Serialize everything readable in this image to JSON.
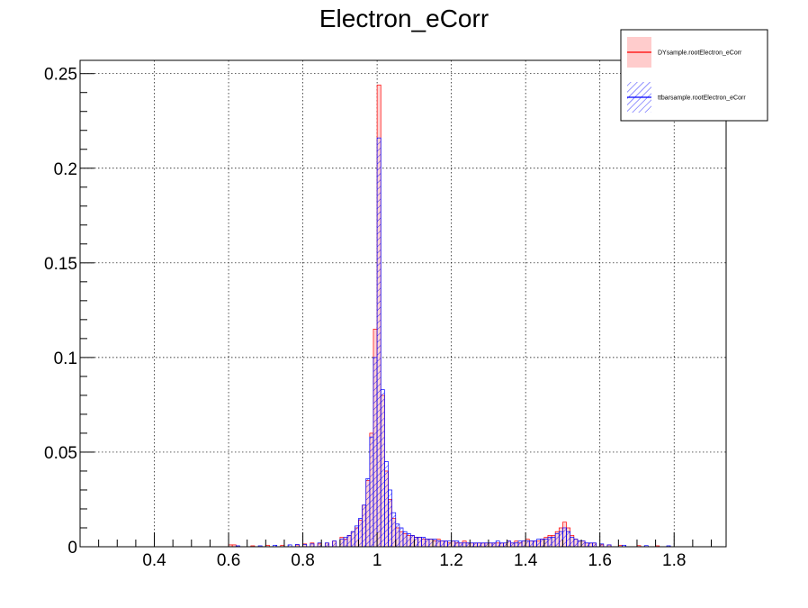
{
  "chart_data": {
    "type": "histogram",
    "title": "Electron_eCorr",
    "xlabel": "",
    "ylabel": "",
    "xlim": [
      0.2,
      1.94
    ],
    "ylim": [
      0,
      0.257
    ],
    "x_ticks": [
      0.4,
      0.6,
      0.8,
      1,
      1.2,
      1.4,
      1.6,
      1.8
    ],
    "x_tick_labels": [
      "0.4",
      "0.6",
      "0.8",
      "1",
      "1.2",
      "1.4",
      "1.6",
      "1.8"
    ],
    "y_ticks": [
      0,
      0.05,
      0.1,
      0.15,
      0.2,
      0.25
    ],
    "y_tick_labels": [
      "0",
      "0.05",
      "0.1",
      "0.15",
      "0.2",
      "0.25"
    ],
    "grid": true,
    "legend_position": "top-right",
    "bin_width": 0.01,
    "series": [
      {
        "name": "DYsample.rootElectron_eCorr",
        "color": "#ff0000",
        "fill": "#ffcccc",
        "fill_style": "solid",
        "bins": [
          [
            0.6,
            0.001
          ],
          [
            0.61,
            0.001
          ],
          [
            0.66,
            0.0005
          ],
          [
            0.7,
            0.0008
          ],
          [
            0.74,
            0.0008
          ],
          [
            0.78,
            0.001
          ],
          [
            0.8,
            0.0015
          ],
          [
            0.82,
            0.002
          ],
          [
            0.84,
            0.0015
          ],
          [
            0.86,
            0.002
          ],
          [
            0.88,
            0.003
          ],
          [
            0.9,
            0.005
          ],
          [
            0.91,
            0.004
          ],
          [
            0.92,
            0.006
          ],
          [
            0.93,
            0.008
          ],
          [
            0.94,
            0.01
          ],
          [
            0.95,
            0.014
          ],
          [
            0.96,
            0.022
          ],
          [
            0.97,
            0.035
          ],
          [
            0.98,
            0.06
          ],
          [
            0.99,
            0.115
          ],
          [
            1.0,
            0.244
          ],
          [
            1.01,
            0.08
          ],
          [
            1.02,
            0.04
          ],
          [
            1.03,
            0.025
          ],
          [
            1.04,
            0.015
          ],
          [
            1.05,
            0.01
          ],
          [
            1.06,
            0.008
          ],
          [
            1.07,
            0.007
          ],
          [
            1.08,
            0.006
          ],
          [
            1.09,
            0.006
          ],
          [
            1.1,
            0.005
          ],
          [
            1.11,
            0.005
          ],
          [
            1.12,
            0.004
          ],
          [
            1.13,
            0.004
          ],
          [
            1.14,
            0.004
          ],
          [
            1.15,
            0.003
          ],
          [
            1.16,
            0.004
          ],
          [
            1.17,
            0.003
          ],
          [
            1.18,
            0.003
          ],
          [
            1.19,
            0.002
          ],
          [
            1.2,
            0.003
          ],
          [
            1.21,
            0.002
          ],
          [
            1.22,
            0.002
          ],
          [
            1.23,
            0.003
          ],
          [
            1.24,
            0.002
          ],
          [
            1.25,
            0.002
          ],
          [
            1.26,
            0.002
          ],
          [
            1.27,
            0.002
          ],
          [
            1.28,
            0.002
          ],
          [
            1.29,
            0.002
          ],
          [
            1.3,
            0.002
          ],
          [
            1.31,
            0.002
          ],
          [
            1.32,
            0.002
          ],
          [
            1.33,
            0.002
          ],
          [
            1.34,
            0.002
          ],
          [
            1.35,
            0.003
          ],
          [
            1.36,
            0.002
          ],
          [
            1.37,
            0.003
          ],
          [
            1.38,
            0.002
          ],
          [
            1.39,
            0.003
          ],
          [
            1.4,
            0.004
          ],
          [
            1.41,
            0.003
          ],
          [
            1.42,
            0.003
          ],
          [
            1.43,
            0.003
          ],
          [
            1.44,
            0.004
          ],
          [
            1.45,
            0.005
          ],
          [
            1.46,
            0.006
          ],
          [
            1.47,
            0.006
          ],
          [
            1.48,
            0.008
          ],
          [
            1.49,
            0.01
          ],
          [
            1.5,
            0.013
          ],
          [
            1.51,
            0.01
          ],
          [
            1.52,
            0.006
          ],
          [
            1.53,
            0.004
          ],
          [
            1.54,
            0.003
          ],
          [
            1.55,
            0.003
          ],
          [
            1.56,
            0.002
          ],
          [
            1.57,
            0.002
          ],
          [
            1.58,
            0.002
          ],
          [
            1.6,
            0.001
          ],
          [
            1.62,
            0.001
          ],
          [
            1.65,
            0.0008
          ],
          [
            1.7,
            0.0006
          ],
          [
            1.75,
            0.0005
          ]
        ]
      },
      {
        "name": "ttbarsample.rootElectron_eCorr",
        "color": "#0000ff",
        "fill": "#0000ff",
        "fill_style": "hatched",
        "bins": [
          [
            0.62,
            0.0005
          ],
          [
            0.68,
            0.0005
          ],
          [
            0.72,
            0.0008
          ],
          [
            0.76,
            0.001
          ],
          [
            0.78,
            0.0012
          ],
          [
            0.8,
            0.0012
          ],
          [
            0.82,
            0.0015
          ],
          [
            0.84,
            0.002
          ],
          [
            0.86,
            0.002
          ],
          [
            0.88,
            0.003
          ],
          [
            0.9,
            0.004
          ],
          [
            0.91,
            0.005
          ],
          [
            0.92,
            0.006
          ],
          [
            0.93,
            0.008
          ],
          [
            0.94,
            0.011
          ],
          [
            0.95,
            0.015
          ],
          [
            0.96,
            0.022
          ],
          [
            0.97,
            0.036
          ],
          [
            0.98,
            0.058
          ],
          [
            0.99,
            0.1
          ],
          [
            1.0,
            0.216
          ],
          [
            1.01,
            0.083
          ],
          [
            1.02,
            0.045
          ],
          [
            1.03,
            0.03
          ],
          [
            1.04,
            0.018
          ],
          [
            1.05,
            0.012
          ],
          [
            1.06,
            0.01
          ],
          [
            1.07,
            0.008
          ],
          [
            1.08,
            0.007
          ],
          [
            1.09,
            0.006
          ],
          [
            1.1,
            0.005
          ],
          [
            1.11,
            0.005
          ],
          [
            1.12,
            0.005
          ],
          [
            1.13,
            0.004
          ],
          [
            1.14,
            0.004
          ],
          [
            1.15,
            0.004
          ],
          [
            1.16,
            0.003
          ],
          [
            1.17,
            0.003
          ],
          [
            1.18,
            0.003
          ],
          [
            1.19,
            0.003
          ],
          [
            1.2,
            0.003
          ],
          [
            1.21,
            0.003
          ],
          [
            1.22,
            0.002
          ],
          [
            1.23,
            0.002
          ],
          [
            1.24,
            0.002
          ],
          [
            1.25,
            0.002
          ],
          [
            1.26,
            0.002
          ],
          [
            1.27,
            0.002
          ],
          [
            1.28,
            0.002
          ],
          [
            1.29,
            0.002
          ],
          [
            1.3,
            0.002
          ],
          [
            1.31,
            0.002
          ],
          [
            1.32,
            0.003
          ],
          [
            1.33,
            0.002
          ],
          [
            1.34,
            0.002
          ],
          [
            1.35,
            0.003
          ],
          [
            1.36,
            0.002
          ],
          [
            1.37,
            0.002
          ],
          [
            1.38,
            0.003
          ],
          [
            1.39,
            0.003
          ],
          [
            1.4,
            0.003
          ],
          [
            1.41,
            0.003
          ],
          [
            1.42,
            0.003
          ],
          [
            1.43,
            0.004
          ],
          [
            1.44,
            0.004
          ],
          [
            1.45,
            0.004
          ],
          [
            1.46,
            0.005
          ],
          [
            1.47,
            0.005
          ],
          [
            1.48,
            0.007
          ],
          [
            1.49,
            0.008
          ],
          [
            1.5,
            0.01
          ],
          [
            1.51,
            0.008
          ],
          [
            1.52,
            0.005
          ],
          [
            1.53,
            0.004
          ],
          [
            1.54,
            0.003
          ],
          [
            1.55,
            0.003
          ],
          [
            1.56,
            0.002
          ],
          [
            1.57,
            0.002
          ],
          [
            1.58,
            0.002
          ],
          [
            1.6,
            0.0015
          ],
          [
            1.62,
            0.001
          ],
          [
            1.66,
            0.0008
          ],
          [
            1.72,
            0.0006
          ],
          [
            1.78,
            0.0005
          ]
        ]
      }
    ]
  }
}
